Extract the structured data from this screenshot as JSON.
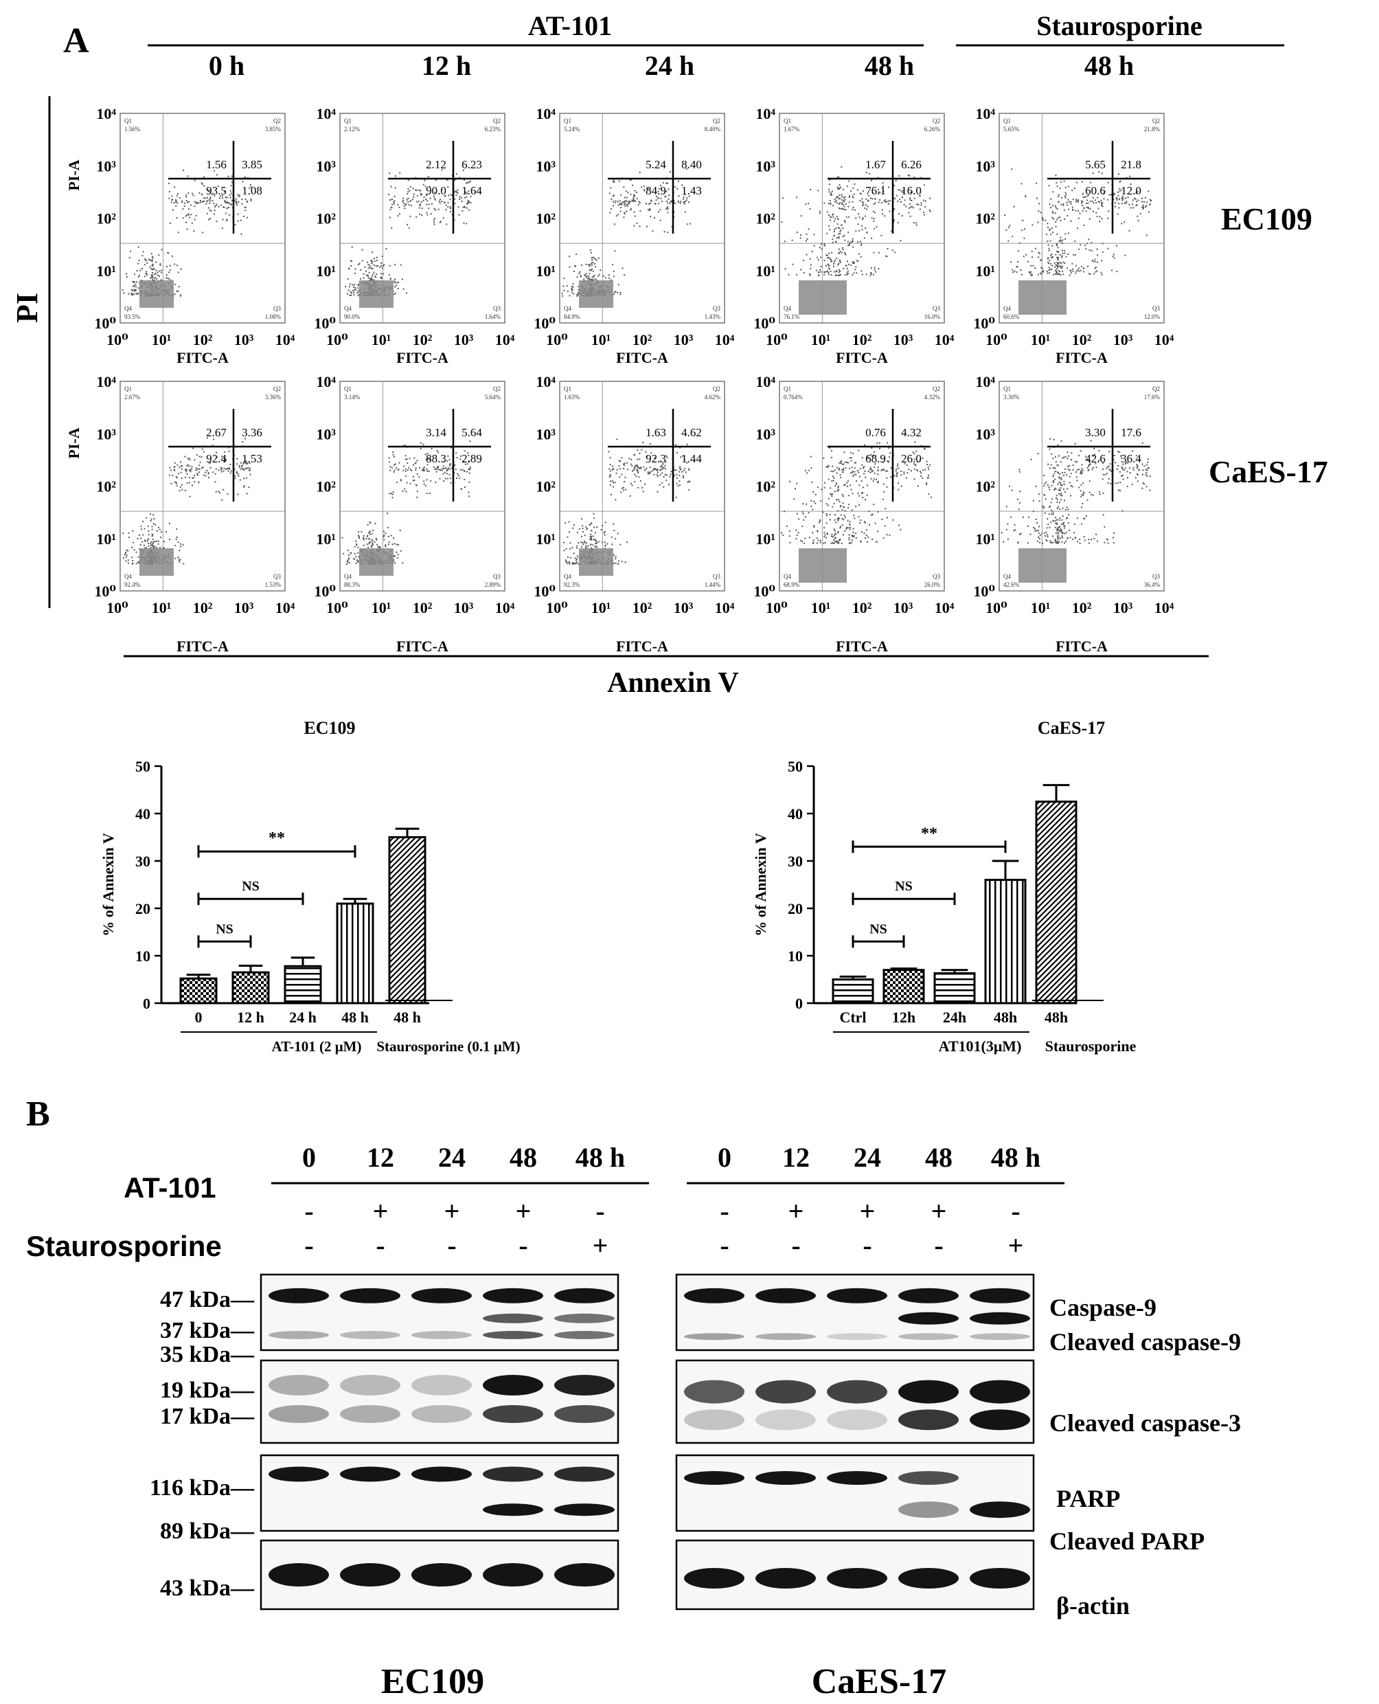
{
  "panel_a": {
    "letter": "A",
    "group_at101": "AT-101",
    "group_stauro": "Staurosporine",
    "timepoints": [
      "0 h",
      "12 h",
      "24 h",
      "48 h",
      "48 h"
    ],
    "y_axis_name": "PI",
    "x_axis_name": "Annexin V",
    "flow_axis_y": "PI-A",
    "flow_axis_x": "FITC-A",
    "decade_ticks": [
      "10⁰",
      "10¹",
      "10²",
      "10³",
      "10⁴"
    ],
    "quadrant_names": [
      "Q1",
      "Q2",
      "Q3",
      "Q4"
    ],
    "cell_lines": [
      "EC109",
      "CaES-17"
    ],
    "flow_rows": [
      {
        "row": "EC109",
        "plots": [
          {
            "q1": "1.56",
            "q2": "3.85",
            "q4": "93.5",
            "q3": "1.08",
            "cq1": "1.56%",
            "cq2": "3.85%",
            "cq4": "93.5%",
            "cq3": "1.08%"
          },
          {
            "q1": "2.12",
            "q2": "6.23",
            "q4": "90.0",
            "q3": "1.64",
            "cq1": "2.12%",
            "cq2": "6.23%",
            "cq4": "90.0%",
            "cq3": "1.64%"
          },
          {
            "q1": "5.24",
            "q2": "8.40",
            "q4": "84.9",
            "q3": "1.43",
            "cq1": "5.24%",
            "cq2": "8.40%",
            "cq4": "84.9%",
            "cq3": "1.43%"
          },
          {
            "q1": "1.67",
            "q2": "6.26",
            "q4": "76.1",
            "q3": "16.0",
            "cq1": "1.67%",
            "cq2": "6.26%",
            "cq4": "76.1%",
            "cq3": "16.0%"
          },
          {
            "q1": "5.65",
            "q2": "21.8",
            "q4": "60.6",
            "q3": "12.0",
            "cq1": "5.65%",
            "cq2": "21.8%",
            "cq4": "60.6%",
            "cq3": "12.0%"
          }
        ]
      },
      {
        "row": "CaES-17",
        "plots": [
          {
            "q1": "2.67",
            "q2": "3.36",
            "q4": "92.4",
            "q3": "1.53",
            "cq1": "2.67%",
            "cq2": "3.36%",
            "cq4": "92.4%",
            "cq3": "1.53%"
          },
          {
            "q1": "3.14",
            "q2": "5.64",
            "q4": "88.3",
            "q3": "2.89",
            "cq1": "3.14%",
            "cq2": "5.64%",
            "cq4": "88.3%",
            "cq3": "2.89%"
          },
          {
            "q1": "1.63",
            "q2": "4.62",
            "q4": "92.3",
            "q3": "1.44",
            "cq1": "1.63%",
            "cq2": "4.62%",
            "cq4": "92.3%",
            "cq3": "1.44%"
          },
          {
            "q1": "0.76",
            "q2": "4.32",
            "q4": "68.9",
            "q3": "26.0",
            "cq1": "0.764%",
            "cq2": "4.32%",
            "cq4": "68.9%",
            "cq3": "26.0%"
          },
          {
            "q1": "3.30",
            "q2": "17.6",
            "q4": "42.6",
            "q3": "36.4",
            "cq1": "3.30%",
            "cq2": "17.6%",
            "cq4": "42.6%",
            "cq3": "36.4%"
          }
        ]
      }
    ]
  },
  "chart_data": [
    {
      "type": "bar",
      "title": "EC109",
      "ylabel": "% of Annexin V",
      "ylim": [
        0,
        50
      ],
      "yticks": [
        "0",
        "10",
        "20",
        "30",
        "40",
        "50"
      ],
      "categories": [
        "0",
        "12 h",
        "24 h",
        "48 h",
        "48 h"
      ],
      "values": [
        5.2,
        6.5,
        7.8,
        21.0,
        35.0
      ],
      "errors": [
        0.8,
        1.4,
        1.8,
        1.0,
        1.8
      ],
      "group_labels": [
        "AT-101 (2 μM)",
        "Staurosporine (0.1 μM)"
      ],
      "significance": [
        {
          "from": 0,
          "to": 1,
          "label": "NS"
        },
        {
          "from": 0,
          "to": 2,
          "label": "NS"
        },
        {
          "from": 0,
          "to": 3,
          "label": "**"
        }
      ]
    },
    {
      "type": "bar",
      "title": "CaES-17",
      "ylabel": "% of Annexin V",
      "ylim": [
        0,
        50
      ],
      "yticks": [
        "0",
        "10",
        "20",
        "30",
        "40",
        "50"
      ],
      "categories": [
        "Ctrl",
        "12h",
        "24h",
        "48h",
        "48h"
      ],
      "values": [
        5.0,
        7.0,
        6.3,
        26.0,
        42.5
      ],
      "errors": [
        0.6,
        0.3,
        0.7,
        4.0,
        3.5
      ],
      "group_labels": [
        "AT101(3μM)",
        "Staurosporine"
      ],
      "significance": [
        {
          "from": 0,
          "to": 1,
          "label": "NS"
        },
        {
          "from": 0,
          "to": 2,
          "label": "NS"
        },
        {
          "from": 0,
          "to": 3,
          "label": "**"
        }
      ]
    }
  ],
  "panel_b": {
    "letter": "B",
    "times": [
      "0",
      "12",
      "24",
      "48",
      "48 h"
    ],
    "treatment_labels": [
      "AT-101",
      "Staurosporine"
    ],
    "at101_signs": [
      "-",
      "+",
      "+",
      "+",
      "-"
    ],
    "stauro_signs": [
      "-",
      "-",
      "-",
      "-",
      "+"
    ],
    "mw_markers": [
      "47 kDa—",
      "37 kDa—",
      "35 kDa—",
      "19 kDa—",
      "17 kDa—",
      "116 kDa—",
      "89 kDa—",
      "43 kDa—"
    ],
    "protein_labels": [
      "Caspase-9",
      "Cleaved caspase-9",
      "Cleaved caspase-3",
      "PARP",
      "Cleaved PARP",
      "β-actin"
    ],
    "blot_titles": [
      "EC109",
      "CaES-17"
    ]
  }
}
